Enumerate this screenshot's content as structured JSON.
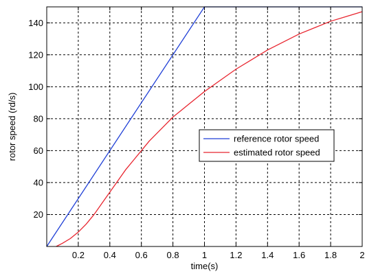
{
  "chart_data": {
    "type": "line",
    "title": "",
    "xlabel": "time(s)",
    "ylabel": "rotor speed (rd/s)",
    "xlim": [
      0,
      2
    ],
    "ylim": [
      0,
      150
    ],
    "x_ticks": [
      0.2,
      0.4,
      0.6,
      0.8,
      1,
      1.2,
      1.4,
      1.6,
      1.8,
      2
    ],
    "x_tick_labels": [
      "0.2",
      "0.4",
      "0.6",
      "0.8",
      "1",
      "1.2",
      "1.4",
      "1.6",
      "1.8",
      "2"
    ],
    "y_ticks": [
      20,
      40,
      60,
      80,
      100,
      120,
      140
    ],
    "y_tick_labels": [
      "20",
      "40",
      "60",
      "80",
      "100",
      "120",
      "140"
    ],
    "grid": true,
    "legend_position": "center-right",
    "series": [
      {
        "name": "reference rotor speed",
        "color": "#1f3fd6",
        "x": [
          0,
          1,
          2
        ],
        "y": [
          0,
          150,
          150
        ]
      },
      {
        "name": "estimated rotor speed",
        "color": "#e8242e",
        "x": [
          0.06,
          0.1,
          0.15,
          0.2,
          0.25,
          0.3,
          0.35,
          0.4,
          0.45,
          0.5,
          0.55,
          0.6,
          0.65,
          0.7,
          0.75,
          0.8,
          0.85,
          0.9,
          0.95,
          1.0,
          1.1,
          1.2,
          1.3,
          1.4,
          1.5,
          1.6,
          1.7,
          1.8,
          1.9,
          2.0
        ],
        "y": [
          0,
          2,
          5,
          9,
          14,
          20,
          27,
          34,
          41,
          48,
          54,
          60,
          66,
          71,
          76,
          81,
          85,
          89,
          93,
          97,
          104,
          111,
          117,
          123,
          128,
          133,
          137,
          141,
          144,
          147
        ]
      }
    ]
  }
}
